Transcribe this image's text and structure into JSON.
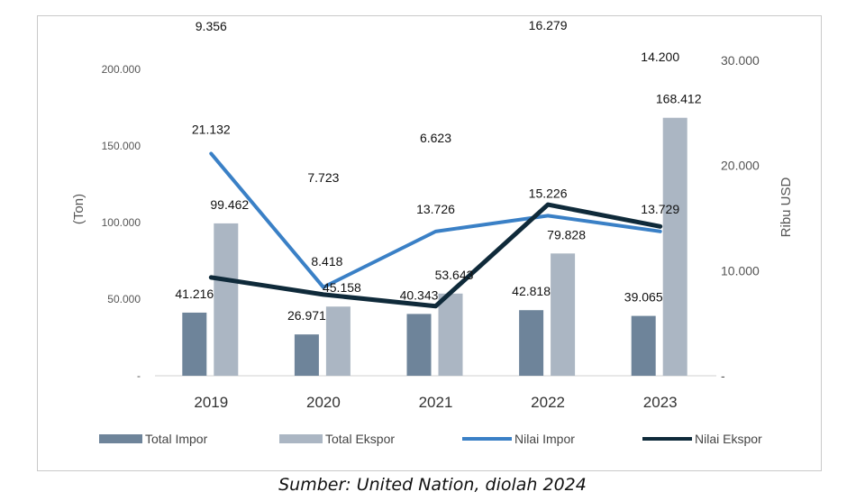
{
  "caption": "Sumber: United Nation, diolah 2024",
  "colors": {
    "impor_bar": "#6e849a",
    "ekspor_bar": "#abb6c3",
    "impor_line": "#3a80c6",
    "ekspor_line": "#0f2a3a"
  },
  "chart_data": {
    "type": "bar",
    "title": "",
    "categories": [
      "2019",
      "2020",
      "2021",
      "2022",
      "2023"
    ],
    "y_left": {
      "label": "(Ton)",
      "ticks": [
        "-",
        "50.000",
        "100.000",
        "150.000",
        "200.000"
      ],
      "tick_values": [
        0,
        50000,
        100000,
        150000,
        200000
      ],
      "ylim": [
        0,
        200000
      ]
    },
    "y_right": {
      "label": "Ribu USD",
      "ticks": [
        "-",
        "10.000",
        "20.000",
        "30.000"
      ],
      "tick_values": [
        0,
        10000,
        20000,
        30000
      ],
      "ylim": [
        0,
        30000
      ]
    },
    "series": [
      {
        "name": "Total Impor",
        "kind": "bar",
        "axis": "left",
        "values": [
          41216,
          26971,
          40343,
          42818,
          39065
        ],
        "labels": [
          "41.216",
          "26.971",
          "40.343",
          "42.818",
          "39.065"
        ]
      },
      {
        "name": "Total Ekspor",
        "kind": "bar",
        "axis": "left",
        "values": [
          99462,
          45158,
          53643,
          79828,
          168412
        ],
        "labels": [
          "99.462",
          "45.158",
          "53.643",
          "79.828",
          "168.412"
        ]
      },
      {
        "name": "Nilai  Impor",
        "kind": "line",
        "axis": "right",
        "values": [
          21132,
          8418,
          13726,
          15226,
          13729
        ],
        "labels": [
          "21.132",
          "8.418",
          "13.726",
          "15.226",
          "13.729"
        ]
      },
      {
        "name": "Nilai  Ekspor",
        "kind": "line",
        "axis": "right",
        "values": [
          9356,
          7723,
          6623,
          16279,
          14200
        ],
        "labels": [
          "9.356",
          "7.723",
          "6.623",
          "16.279",
          "14.200"
        ]
      }
    ],
    "legend": [
      "Total Impor",
      "Total Ekspor",
      "Nilai  Impor",
      "Nilai  Ekspor"
    ],
    "legend_position": "bottom",
    "grid": false
  }
}
